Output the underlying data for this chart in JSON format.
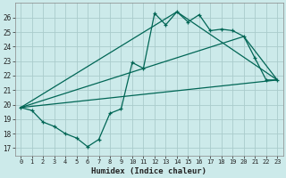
{
  "xlabel": "Humidex (Indice chaleur)",
  "background_color": "#cceaea",
  "grid_color": "#aacccc",
  "line_color": "#006655",
  "xlim": [
    -0.5,
    23.5
  ],
  "ylim": [
    16.5,
    27.0
  ],
  "yticks": [
    17,
    18,
    19,
    20,
    21,
    22,
    23,
    24,
    25,
    26
  ],
  "xticks": [
    0,
    1,
    2,
    3,
    4,
    5,
    6,
    7,
    8,
    9,
    10,
    11,
    12,
    13,
    14,
    15,
    16,
    17,
    18,
    19,
    20,
    21,
    22,
    23
  ],
  "series_main_x": [
    0,
    1,
    2,
    3,
    4,
    5,
    6,
    7,
    8,
    9,
    10,
    11,
    12,
    13,
    14,
    15,
    16,
    17,
    18,
    19,
    20,
    21,
    22,
    23
  ],
  "series_main_y": [
    19.8,
    19.6,
    18.8,
    18.5,
    18.0,
    17.7,
    17.1,
    17.6,
    19.4,
    19.7,
    22.9,
    22.5,
    26.3,
    25.5,
    26.4,
    25.7,
    26.2,
    25.1,
    25.2,
    25.1,
    24.7,
    23.2,
    21.7,
    21.7
  ],
  "series_line1_x": [
    0,
    23
  ],
  "series_line1_y": [
    19.8,
    21.7
  ],
  "series_line2_x": [
    0,
    20,
    23
  ],
  "series_line2_y": [
    19.8,
    24.7,
    21.7
  ],
  "series_line3_x": [
    0,
    14,
    23
  ],
  "series_line3_y": [
    19.8,
    26.4,
    21.7
  ]
}
